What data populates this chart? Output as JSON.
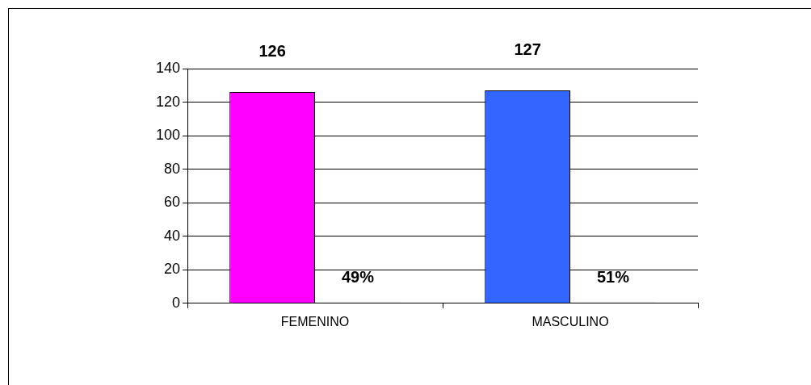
{
  "chart_data": {
    "type": "bar",
    "categories": [
      "FEMENINO",
      "MASCULINO"
    ],
    "series": [
      {
        "colors": [
          "#ff00ff",
          "#3366ff"
        ],
        "values": [
          126,
          127
        ],
        "value_labels": [
          "126",
          "127"
        ]
      },
      {
        "color": "#000000",
        "values": [
          0.49,
          0.51
        ],
        "value_labels": [
          "49%",
          "51%"
        ]
      }
    ],
    "ylim": [
      0,
      140
    ],
    "yticks": [
      0,
      20,
      40,
      60,
      80,
      100,
      120,
      140
    ],
    "grid": "y",
    "legend": false
  }
}
